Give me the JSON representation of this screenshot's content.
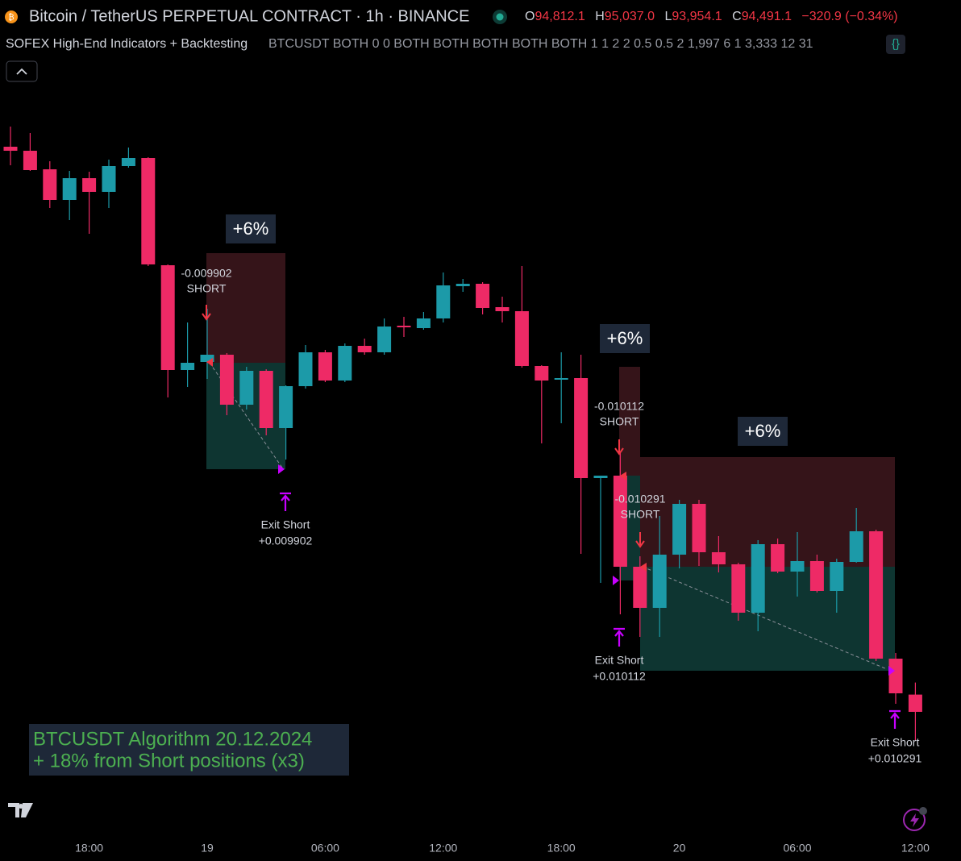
{
  "header": {
    "symbol": "Bitcoin / TetherUS PERPETUAL CONTRACT · 1h · BINANCE",
    "ohlc": [
      {
        "label": "O",
        "value": "94,812.1"
      },
      {
        "label": "H",
        "value": "95,037.0"
      },
      {
        "label": "L",
        "value": "93,954.1"
      },
      {
        "label": "C",
        "value": "94,491.1"
      }
    ],
    "change": "−320.9 (−0.34%)"
  },
  "indicator": {
    "name": "SOFEX High-End Indicators + Backtesting",
    "params": "BTCUSDT BOTH 0 0 BOTH BOTH BOTH BOTH BOTH 1 1 2 2 0.5 0.5 2 1,997 6 1 3,333 12 31"
  },
  "trades": [
    {
      "gain": "+6%",
      "entry_value": "-0.009902",
      "entry_label": "SHORT",
      "exit_label": "Exit Short",
      "exit_value": "+0.009902"
    },
    {
      "gain": "+6%",
      "entry_value": "-0.010112",
      "entry_label": "SHORT",
      "exit_label": "Exit Short",
      "exit_value": "+0.010112"
    },
    {
      "gain": "+6%",
      "entry_value": "-0.010291",
      "entry_label": "SHORT",
      "exit_label": "Exit Short",
      "exit_value": "+0.010291"
    }
  ],
  "caption": [
    "BTCUSDT Algorithm 20.12.2024",
    "+ 18% from Short positions (x3)"
  ],
  "chart_data": {
    "type": "candlestick",
    "categories": [
      null,
      null,
      null,
      null,
      "18:00",
      null,
      null,
      null,
      null,
      null,
      "19",
      null,
      null,
      null,
      null,
      null,
      "06:00",
      null,
      null,
      null,
      null,
      null,
      "12:00",
      null,
      null,
      null,
      null,
      null,
      "18:00",
      null,
      null,
      null,
      null,
      null,
      "20",
      null,
      null,
      null,
      null,
      null,
      "06:00",
      null,
      null,
      null,
      null,
      null,
      "12:00"
    ],
    "open": [
      105006,
      104931,
      104586,
      104016,
      104421,
      104166,
      104646,
      104796,
      102801,
      100851,
      101001,
      101136,
      100206,
      100836,
      99771,
      100551,
      101181,
      100656,
      101301,
      101181,
      101676,
      101631,
      101811,
      102411,
      102456,
      102021,
      101946,
      100926,
      100671,
      100701,
      98841,
      98886,
      97191,
      96426,
      97416,
      98361,
      97461,
      97236,
      96336,
      97611,
      97101,
      97296,
      96741,
      97281,
      97851,
      95481,
      94812.1
    ],
    "high": [
      105381,
      105261,
      104736,
      104556,
      104541,
      104766,
      104991,
      104811,
      102816,
      101736,
      101991,
      101166,
      100911,
      100866,
      100566,
      101316,
      101226,
      101346,
      101436,
      101811,
      101841,
      101931,
      102666,
      102546,
      102486,
      102216,
      102786,
      100941,
      101181,
      101136,
      98886,
      99336,
      97386,
      98136,
      98436,
      98436,
      97761,
      97266,
      97686,
      97716,
      97836,
      97416,
      97341,
      98286,
      97881,
      95586,
      95037.0
    ],
    "low": [
      104661,
      104556,
      103866,
      103641,
      103386,
      103866,
      104616,
      102786,
      100341,
      100536,
      100686,
      100011,
      100116,
      99636,
      99186,
      100506,
      100626,
      100626,
      101136,
      101136,
      101466,
      101601,
      101736,
      102306,
      101886,
      101736,
      100896,
      99486,
      99861,
      97431,
      96891,
      96306,
      95886,
      95886,
      97161,
      97206,
      97086,
      96186,
      95991,
      97071,
      96636,
      96711,
      96336,
      97266,
      95436,
      94641,
      93954.1
    ],
    "close": [
      104931,
      104571,
      104016,
      104421,
      104166,
      104646,
      104796,
      102816,
      100851,
      100986,
      101136,
      100206,
      100836,
      99771,
      100551,
      101181,
      100656,
      101301,
      101181,
      101661,
      101646,
      101811,
      102426,
      102456,
      102006,
      101946,
      100926,
      100656,
      100701,
      98841,
      98886,
      97191,
      96426,
      97416,
      98361,
      97461,
      97236,
      96336,
      97611,
      97101,
      97296,
      96741,
      97281,
      97851,
      95481,
      94836,
      94491.1
    ],
    "up_color": "#1c9aa8",
    "down_color": "#ee2a66",
    "ylim": [
      92250,
      106200
    ]
  }
}
